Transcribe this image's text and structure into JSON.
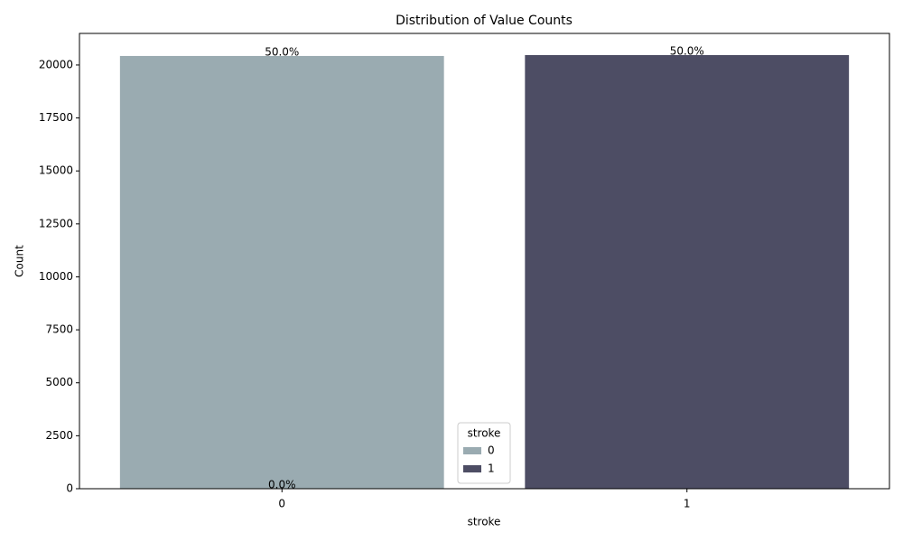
{
  "chart_data": {
    "type": "bar",
    "title": "Distribution of Value Counts",
    "x_label": "stroke",
    "y_label": "Count",
    "categories": [
      "0",
      "1"
    ],
    "series": [
      {
        "name": "0",
        "color": "#9aabb1",
        "values": [
          20426,
          null
        ],
        "percent_labels": [
          "50.0%",
          null
        ]
      },
      {
        "name": "1",
        "color": "#4d4d64",
        "values": [
          0,
          20469
        ],
        "percent_labels": [
          "0.0%",
          "50.0%"
        ]
      }
    ],
    "legend_title": "stroke",
    "legend_position": "bottom-center",
    "ylim": [
      0,
      21490
    ],
    "yticks": [
      0,
      2500,
      5000,
      7500,
      10000,
      12500,
      15000,
      17500,
      20000
    ]
  }
}
